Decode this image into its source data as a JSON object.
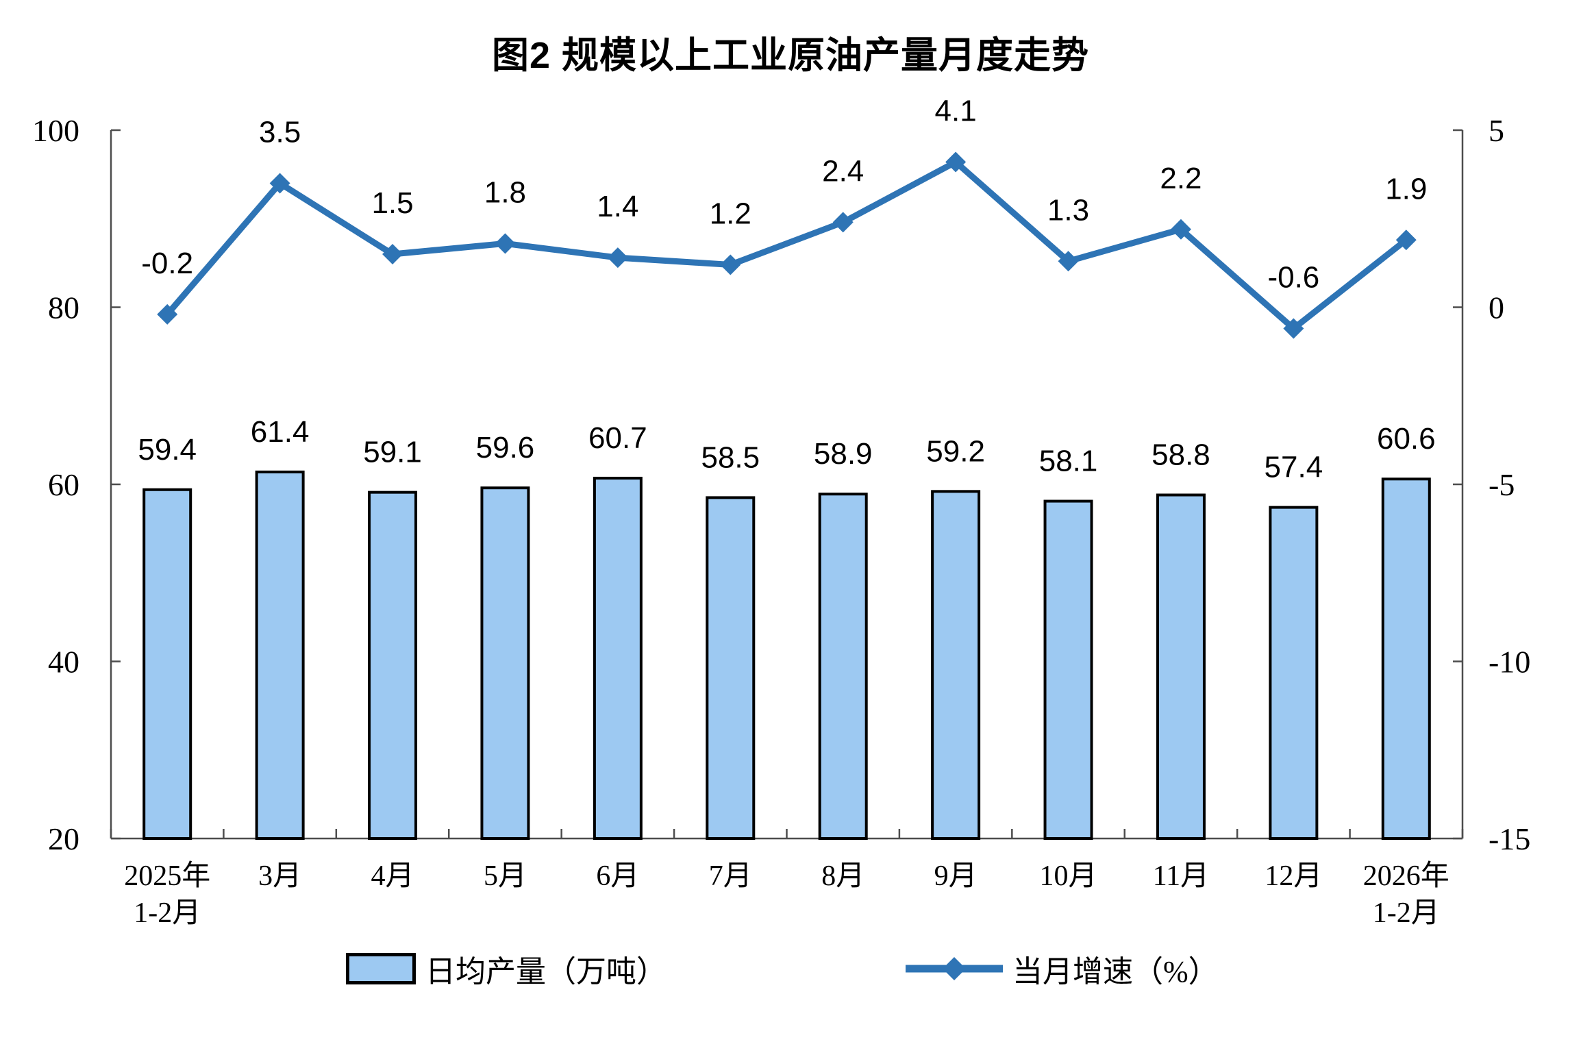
{
  "chart_data": {
    "type": "combo-bar-line",
    "title": "图2 规模以上工业原油产量月度走势",
    "categories": [
      "2025年\n1-2月",
      "3月",
      "4月",
      "5月",
      "6月",
      "7月",
      "8月",
      "9月",
      "10月",
      "11月",
      "12月",
      "2026年\n1-2月"
    ],
    "series": [
      {
        "name": "日均产量（万吨）",
        "type": "bar",
        "axis": "left",
        "fill_color": "#9DC9F2",
        "border_color": "#000000",
        "values": [
          59.4,
          61.4,
          59.1,
          59.6,
          60.7,
          58.5,
          58.9,
          59.2,
          58.1,
          58.8,
          57.4,
          60.6
        ]
      },
      {
        "name": "当月增速（%）",
        "type": "line",
        "axis": "right",
        "color": "#2E74B5",
        "marker": "diamond",
        "values": [
          -0.2,
          3.5,
          1.5,
          1.8,
          1.4,
          1.2,
          2.4,
          4.1,
          1.3,
          2.2,
          -0.6,
          1.9
        ]
      }
    ],
    "left_axis": {
      "min": 20,
      "max": 100,
      "ticks": [
        100,
        80,
        60,
        40,
        20
      ]
    },
    "right_axis": {
      "min": -15,
      "max": 5,
      "ticks": [
        5,
        0,
        -5,
        -10,
        -15
      ]
    },
    "grid": false,
    "legend_position": "bottom",
    "axis_color": "#4d4d4d",
    "text_color": "#000000",
    "background_color": "#ffffff"
  }
}
